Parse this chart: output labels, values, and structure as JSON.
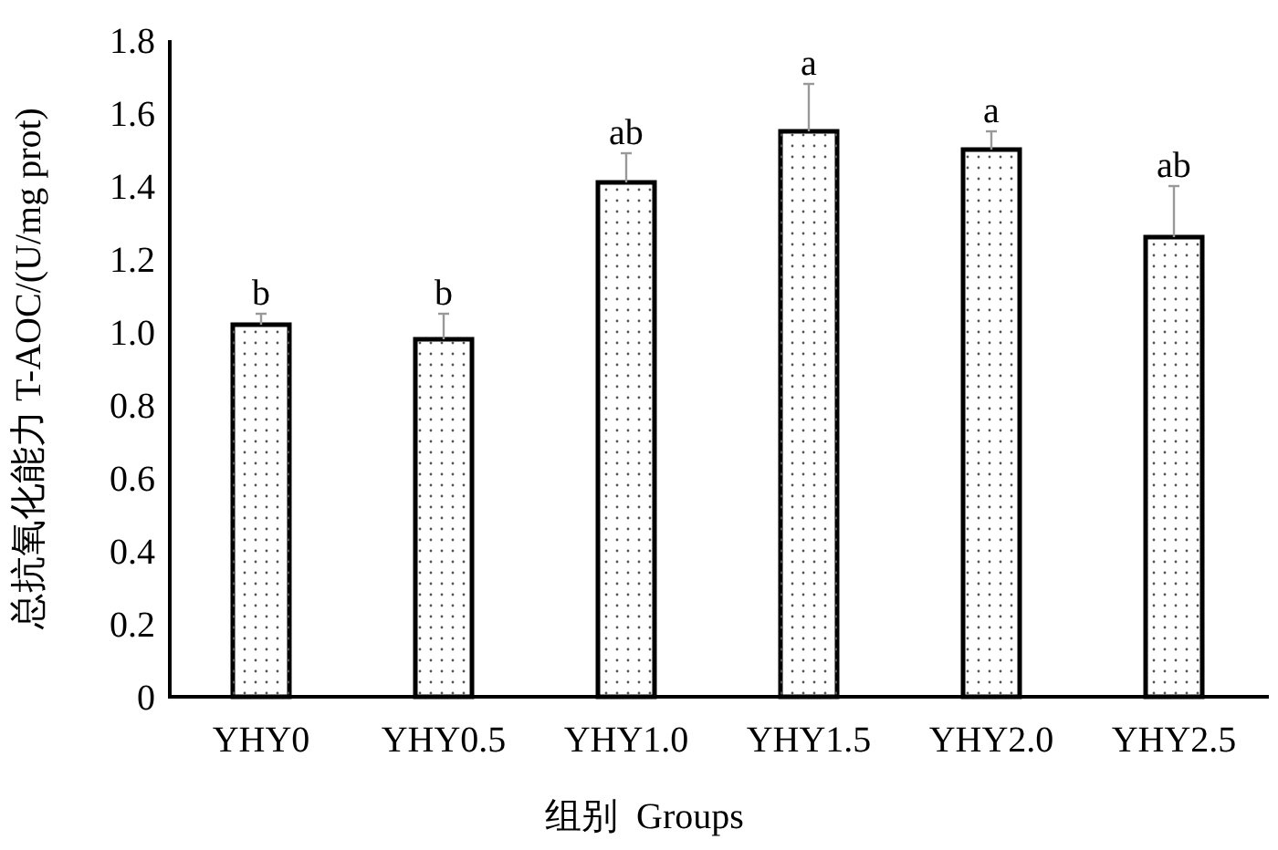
{
  "chart_data": {
    "type": "bar",
    "xlabel": "组别  Groups",
    "ylabel": "总抗氧化能力 T-AOC/(U/mg prot)",
    "categories": [
      "YHY0",
      "YHY0.5",
      "YHY1.0",
      "YHY1.5",
      "YHY2.0",
      "YHY2.5"
    ],
    "values": [
      1.02,
      0.98,
      1.41,
      1.55,
      1.5,
      1.26
    ],
    "errors": [
      [
        1.02,
        1.05
      ],
      [
        0.98,
        1.05
      ],
      [
        1.41,
        1.49
      ],
      [
        1.55,
        1.68
      ],
      [
        1.5,
        1.55
      ],
      [
        1.26,
        1.4
      ]
    ],
    "color": "#ffffff",
    "ylim": [
      0,
      1.8
    ],
    "yticks": [
      0,
      0.2,
      0.4,
      0.6,
      0.8,
      {
        "value": 1,
        "label": "1.0"
      },
      1.2,
      1.4,
      1.6,
      1.8
    ],
    "grid": false,
    "annotations": [
      {
        "text": "b",
        "x": "YHY0",
        "y": 1.05
      },
      {
        "text": "b",
        "x": "YHY0.5",
        "y": 1.05
      },
      {
        "text": "ab",
        "x": "YHY1.0",
        "y": 1.49
      },
      {
        "text": "a",
        "x": "YHY1.5",
        "y": 1.68
      },
      {
        "text": "a",
        "x": "YHY2.0",
        "y": 1.55
      },
      {
        "text": "ab",
        "x": "YHY2.5",
        "y": 1.4
      }
    ]
  }
}
